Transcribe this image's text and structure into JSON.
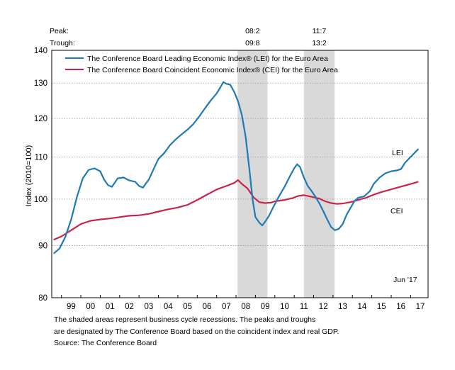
{
  "chart_data": {
    "type": "line",
    "y_axis": {
      "label": "Index (2010=100)",
      "scale": "log",
      "range": [
        80,
        140
      ],
      "ticks": [
        80,
        90,
        100,
        110,
        120,
        130,
        140
      ]
    },
    "x_axis": {
      "range_years": [
        1998.5,
        2017.9
      ],
      "tick_labels": [
        "99",
        "00",
        "01",
        "02",
        "03",
        "04",
        "05",
        "06",
        "07",
        "08",
        "09",
        "10",
        "11",
        "12",
        "13",
        "14",
        "15",
        "16",
        "17"
      ]
    },
    "grid": "horizontal dotted",
    "legend_position": "top-left",
    "recession_header": {
      "peak_label": "Peak:",
      "trough_label": "Trough:"
    },
    "recessions": [
      {
        "peak": "08:2",
        "trough": "09:8",
        "start": 2008.08,
        "end": 2009.62
      },
      {
        "peak": "11:7",
        "trough": "13:2",
        "start": 2011.5,
        "end": 2013.08
      }
    ],
    "series": [
      {
        "name": "The Conference Board Leading Economic Index® (LEI) for the Euro Area",
        "end_label": "LEI",
        "color": "#1f7ab5",
        "points": [
          [
            1998.6,
            88.4
          ],
          [
            1998.9,
            89.4
          ],
          [
            1999.2,
            91.8
          ],
          [
            1999.5,
            95.5
          ],
          [
            1999.8,
            100.5
          ],
          [
            2000.1,
            104.8
          ],
          [
            2000.4,
            106.8
          ],
          [
            2000.7,
            107.2
          ],
          [
            2001.0,
            106.5
          ],
          [
            2001.2,
            104.5
          ],
          [
            2001.4,
            103.2
          ],
          [
            2001.6,
            102.8
          ],
          [
            2001.9,
            104.8
          ],
          [
            2002.2,
            105.0
          ],
          [
            2002.5,
            104.3
          ],
          [
            2002.8,
            104.0
          ],
          [
            2003.0,
            103.0
          ],
          [
            2003.2,
            102.6
          ],
          [
            2003.5,
            104.5
          ],
          [
            2003.8,
            107.5
          ],
          [
            2004.0,
            109.5
          ],
          [
            2004.3,
            111.0
          ],
          [
            2004.6,
            113.0
          ],
          [
            2004.9,
            114.5
          ],
          [
            2005.2,
            115.8
          ],
          [
            2005.5,
            117.0
          ],
          [
            2005.8,
            118.5
          ],
          [
            2006.1,
            120.5
          ],
          [
            2006.4,
            122.8
          ],
          [
            2006.7,
            125.0
          ],
          [
            2007.0,
            127.0
          ],
          [
            2007.2,
            128.8
          ],
          [
            2007.35,
            130.3
          ],
          [
            2007.5,
            129.8
          ],
          [
            2007.7,
            129.5
          ],
          [
            2007.9,
            127.5
          ],
          [
            2008.1,
            124.8
          ],
          [
            2008.3,
            121.0
          ],
          [
            2008.5,
            115.0
          ],
          [
            2008.7,
            106.5
          ],
          [
            2008.85,
            100.0
          ],
          [
            2009.0,
            96.0
          ],
          [
            2009.2,
            94.8
          ],
          [
            2009.35,
            94.2
          ],
          [
            2009.5,
            95.0
          ],
          [
            2009.7,
            96.3
          ],
          [
            2009.9,
            98.0
          ],
          [
            2010.2,
            100.5
          ],
          [
            2010.5,
            102.8
          ],
          [
            2010.8,
            105.5
          ],
          [
            2011.0,
            107.2
          ],
          [
            2011.15,
            108.2
          ],
          [
            2011.3,
            107.5
          ],
          [
            2011.5,
            105.0
          ],
          [
            2011.7,
            103.0
          ],
          [
            2011.9,
            101.8
          ],
          [
            2012.1,
            100.5
          ],
          [
            2012.3,
            99.0
          ],
          [
            2012.5,
            97.3
          ],
          [
            2012.7,
            95.5
          ],
          [
            2012.9,
            93.9
          ],
          [
            2013.1,
            93.2
          ],
          [
            2013.3,
            93.5
          ],
          [
            2013.5,
            94.5
          ],
          [
            2013.7,
            96.5
          ],
          [
            2013.9,
            98.0
          ],
          [
            2014.1,
            99.5
          ],
          [
            2014.3,
            100.3
          ],
          [
            2014.6,
            100.6
          ],
          [
            2014.9,
            101.8
          ],
          [
            2015.1,
            103.5
          ],
          [
            2015.4,
            105.0
          ],
          [
            2015.7,
            106.0
          ],
          [
            2016.0,
            106.5
          ],
          [
            2016.3,
            106.7
          ],
          [
            2016.5,
            107.0
          ],
          [
            2016.7,
            108.5
          ],
          [
            2016.9,
            109.5
          ],
          [
            2017.1,
            110.5
          ],
          [
            2017.4,
            112.0
          ]
        ]
      },
      {
        "name": "The Conference Board Coincident Economic Index® (CEI) for the Euro Area",
        "end_label": "CEI",
        "color": "#c8254d",
        "points": [
          [
            1998.6,
            91.2
          ],
          [
            1999.0,
            91.9
          ],
          [
            1999.5,
            93.2
          ],
          [
            2000.0,
            94.5
          ],
          [
            2000.5,
            95.2
          ],
          [
            2001.0,
            95.5
          ],
          [
            2001.5,
            95.7
          ],
          [
            2002.0,
            96.0
          ],
          [
            2002.5,
            96.3
          ],
          [
            2003.0,
            96.4
          ],
          [
            2003.5,
            96.7
          ],
          [
            2004.0,
            97.2
          ],
          [
            2004.5,
            97.7
          ],
          [
            2005.0,
            98.1
          ],
          [
            2005.5,
            98.7
          ],
          [
            2006.0,
            99.8
          ],
          [
            2006.5,
            101.0
          ],
          [
            2007.0,
            102.2
          ],
          [
            2007.5,
            103.0
          ],
          [
            2007.9,
            103.7
          ],
          [
            2008.1,
            104.4
          ],
          [
            2008.3,
            103.5
          ],
          [
            2008.6,
            102.4
          ],
          [
            2008.9,
            100.4
          ],
          [
            2009.2,
            99.3
          ],
          [
            2009.5,
            99.1
          ],
          [
            2009.8,
            99.2
          ],
          [
            2010.0,
            99.5
          ],
          [
            2010.5,
            99.8
          ],
          [
            2010.9,
            100.2
          ],
          [
            2011.2,
            100.7
          ],
          [
            2011.5,
            100.9
          ],
          [
            2011.9,
            100.5
          ],
          [
            2012.3,
            100.1
          ],
          [
            2012.6,
            99.5
          ],
          [
            2012.9,
            99.1
          ],
          [
            2013.2,
            98.9
          ],
          [
            2013.5,
            99.0
          ],
          [
            2013.9,
            99.3
          ],
          [
            2014.3,
            99.8
          ],
          [
            2014.7,
            100.3
          ],
          [
            2015.1,
            101.0
          ],
          [
            2015.5,
            101.6
          ],
          [
            2015.9,
            102.1
          ],
          [
            2016.3,
            102.6
          ],
          [
            2016.7,
            103.1
          ],
          [
            2017.1,
            103.6
          ],
          [
            2017.4,
            104.0
          ]
        ]
      }
    ],
    "annotations": {
      "date_note": "Jun '17"
    }
  },
  "notes": {
    "line1": "The shaded areas represent business cycle recessions. The peaks and troughs",
    "line2": "are designated by The Conference Board based on the coincident index and real GDP.",
    "source": "Source: The Conference Board"
  }
}
